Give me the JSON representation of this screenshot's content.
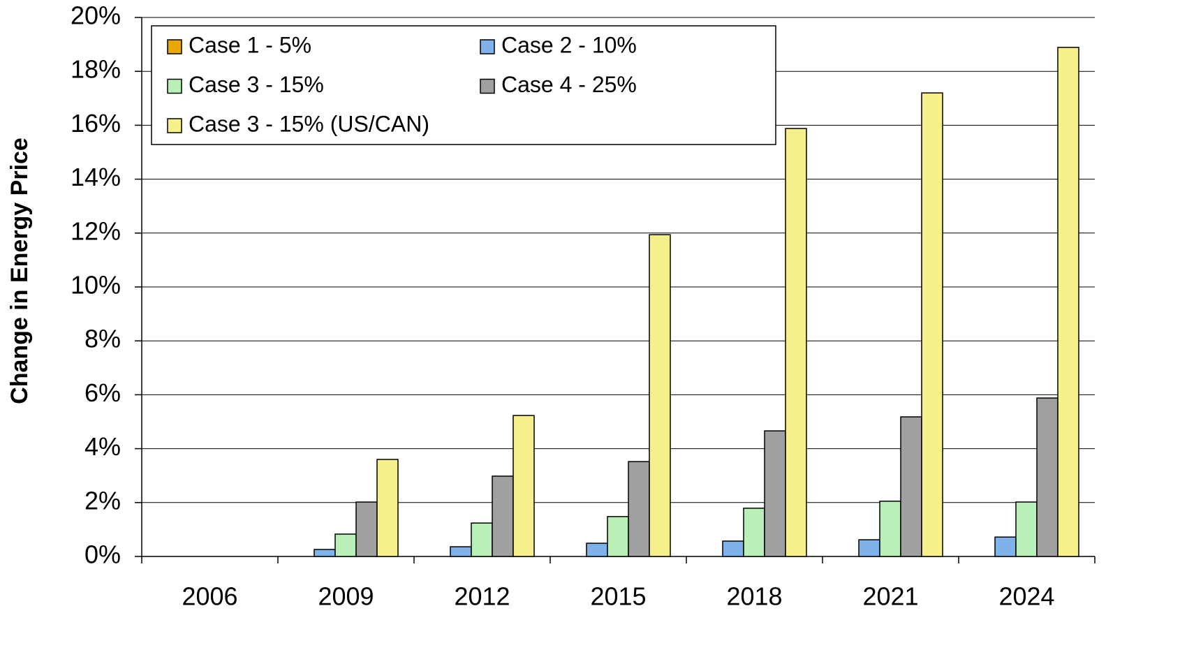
{
  "chart_data": {
    "type": "bar",
    "y_label": "Change in Energy Price",
    "categories": [
      "2006",
      "2009",
      "2012",
      "2015",
      "2018",
      "2021",
      "2024"
    ],
    "series": [
      {
        "name": "Case 1 - 5%",
        "color": "#e8a800",
        "values": [
          0,
          0,
          0,
          0,
          0,
          0,
          0
        ]
      },
      {
        "name": "Case 2 - 10%",
        "color": "#7fb2e8",
        "values": [
          0,
          0.26,
          0.36,
          0.49,
          0.57,
          0.62,
          0.72
        ]
      },
      {
        "name": "Case 3 - 15%",
        "color": "#b8f0b8",
        "values": [
          0,
          0.83,
          1.24,
          1.48,
          1.79,
          2.05,
          2.02
        ]
      },
      {
        "name": "Case 4 - 25%",
        "color": "#a0a0a0",
        "values": [
          0,
          2.02,
          2.98,
          3.52,
          4.66,
          5.18,
          5.88
        ]
      },
      {
        "name": "Case 3 - 15% (US/CAN)",
        "color": "#f5f08c",
        "values": [
          0,
          3.6,
          5.23,
          11.94,
          15.88,
          17.2,
          18.89
        ]
      }
    ],
    "ylim": [
      0,
      20
    ],
    "yticks": [
      {
        "value": 0,
        "label": "0%"
      },
      {
        "value": 2,
        "label": "2%"
      },
      {
        "value": 4,
        "label": "4%"
      },
      {
        "value": 6,
        "label": "6%"
      },
      {
        "value": 8,
        "label": "8%"
      },
      {
        "value": 10,
        "label": "10%"
      },
      {
        "value": 12,
        "label": "12%"
      },
      {
        "value": 14,
        "label": "14%"
      },
      {
        "value": 16,
        "label": "16%"
      },
      {
        "value": 18,
        "label": "18%"
      },
      {
        "value": 20,
        "label": "20%"
      }
    ],
    "grid": true
  }
}
